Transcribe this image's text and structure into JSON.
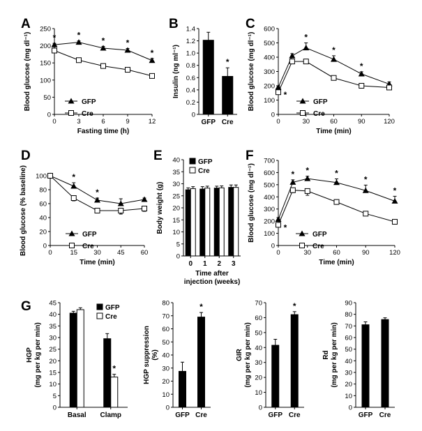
{
  "panels": {
    "A": "A",
    "B": "B",
    "C": "C",
    "D": "D",
    "E": "E",
    "F": "F",
    "G": "G"
  },
  "legend": {
    "gfp": "GFP",
    "cre": "Cre"
  },
  "chart_data": [
    {
      "id": "A",
      "type": "line",
      "xlabel": "Fasting time (h)",
      "ylabel": "Blood glucose (mg dl⁻¹)",
      "x": [
        0,
        3,
        6,
        9,
        12
      ],
      "xticks": [
        "0",
        "3",
        "6",
        "9",
        "12"
      ],
      "yticks": [
        "0",
        "50",
        "100",
        "150",
        "200",
        "250"
      ],
      "ylim": [
        0,
        250
      ],
      "series": [
        {
          "name": "GFP",
          "marker": "triangle",
          "values": [
            203,
            210,
            193,
            187,
            157
          ],
          "errors": [
            4,
            4,
            5,
            5,
            6
          ]
        },
        {
          "name": "Cre",
          "marker": "open-square",
          "values": [
            186,
            158,
            141,
            130,
            112
          ],
          "errors": [
            4,
            3,
            4,
            4,
            5
          ]
        }
      ],
      "stars": [
        0,
        3,
        6,
        9,
        12
      ],
      "star_label": "*"
    },
    {
      "id": "B",
      "type": "bar",
      "ylabel": "Insulin (ng ml⁻¹)",
      "categories": [
        "GFP",
        "Cre"
      ],
      "yticks": [
        "0",
        "0.2",
        "0.4",
        "0.6",
        "0.8",
        "1.0",
        "1.2",
        "1.4"
      ],
      "ylim": [
        0,
        1.4
      ],
      "values": [
        1.21,
        0.62
      ],
      "errors": [
        0.13,
        0.14
      ],
      "stars": [
        "Cre"
      ],
      "star_label": "*"
    },
    {
      "id": "C",
      "type": "line",
      "xlabel": "Time (min)",
      "ylabel": "Blood glucose (mg dl⁻¹)",
      "x": [
        0,
        15,
        30,
        60,
        90,
        120
      ],
      "xticks": [
        "0",
        "30",
        "60",
        "90",
        "120"
      ],
      "yticks": [
        "0",
        "100",
        "200",
        "300",
        "400",
        "500",
        "600"
      ],
      "ylim": [
        0,
        600
      ],
      "series": [
        {
          "name": "GFP",
          "marker": "triangle",
          "values": [
            190,
            410,
            465,
            385,
            283,
            212
          ],
          "errors": [
            10,
            15,
            35,
            25,
            15,
            15
          ]
        },
        {
          "name": "Cre",
          "marker": "open-square",
          "values": [
            155,
            370,
            370,
            255,
            200,
            188
          ],
          "errors": [
            10,
            15,
            15,
            15,
            8,
            8
          ]
        }
      ],
      "stars": [
        0,
        30,
        60,
        90
      ],
      "star_label": "*"
    },
    {
      "id": "D",
      "type": "line",
      "xlabel": "Time (min)",
      "ylabel": "Blood glucose (% baseline)",
      "x": [
        0,
        15,
        30,
        45,
        60
      ],
      "xticks": [
        "0",
        "15",
        "30",
        "45",
        "60"
      ],
      "yticks": [
        "0",
        "20",
        "40",
        "60",
        "80",
        "100"
      ],
      "ylim": [
        0,
        100
      ],
      "series": [
        {
          "name": "GFP",
          "marker": "triangle",
          "values": [
            100,
            85,
            65,
            60,
            66
          ],
          "errors": [
            0,
            5,
            3,
            7,
            2
          ]
        },
        {
          "name": "Cre",
          "marker": "open-square",
          "values": [
            100,
            68,
            50,
            50,
            53
          ],
          "errors": [
            0,
            4,
            3,
            5,
            4
          ]
        }
      ],
      "stars": [
        15,
        30
      ],
      "star_label": "*"
    },
    {
      "id": "E",
      "type": "bar",
      "xlabel": "Time after injection (weeks)",
      "ylabel": "Body weight (g)",
      "categories": [
        "0",
        "1",
        "2",
        "3"
      ],
      "yticks": [
        "0",
        "5",
        "10",
        "15",
        "20",
        "25",
        "30",
        "35",
        "40"
      ],
      "ylim": [
        0,
        40
      ],
      "series": [
        {
          "name": "GFP",
          "values": [
            27.5,
            27.8,
            28.2,
            28.5
          ],
          "errors": [
            0.8,
            1.0,
            0.8,
            1.0
          ]
        },
        {
          "name": "Cre",
          "values": [
            28.0,
            28.2,
            28.3,
            28.5
          ],
          "errors": [
            0.8,
            0.8,
            0.8,
            1.0
          ]
        }
      ]
    },
    {
      "id": "F",
      "type": "line",
      "xlabel": "Time (min)",
      "ylabel": "Blood glucose (mg dl⁻¹)",
      "x": [
        0,
        15,
        30,
        60,
        90,
        120
      ],
      "xticks": [
        "0",
        "30",
        "60",
        "90",
        "120"
      ],
      "yticks": [
        "0",
        "100",
        "200",
        "300",
        "400",
        "500",
        "600",
        "700"
      ],
      "ylim": [
        0,
        700
      ],
      "series": [
        {
          "name": "GFP",
          "marker": "triangle",
          "values": [
            215,
            520,
            550,
            518,
            452,
            365
          ],
          "errors": [
            15,
            20,
            20,
            30,
            45,
            40
          ]
        },
        {
          "name": "Cre",
          "marker": "open-square",
          "values": [
            170,
            455,
            448,
            358,
            262,
            195
          ],
          "errors": [
            10,
            20,
            35,
            20,
            15,
            12
          ]
        }
      ],
      "stars": [
        15,
        30,
        60,
        90,
        120
      ],
      "star_label": "*",
      "star0_label": "*"
    },
    {
      "id": "G1",
      "type": "bar",
      "ylabel": "HGP (mg per kg per min)",
      "categories": [
        "Basal",
        "Clamp"
      ],
      "yticks": [
        "0",
        "5",
        "10",
        "15",
        "20",
        "25",
        "30",
        "35",
        "40",
        "45"
      ],
      "ylim": [
        0,
        45
      ],
      "series": [
        {
          "name": "GFP",
          "values": [
            40.5,
            29.5
          ],
          "errors": [
            0.8,
            2.2
          ]
        },
        {
          "name": "Cre",
          "values": [
            42.0,
            13.0
          ],
          "errors": [
            0.8,
            1.2
          ]
        }
      ],
      "star_label": "*"
    },
    {
      "id": "G2",
      "type": "bar",
      "ylabel": "HGP suppression (%)",
      "categories": [
        "GFP",
        "Cre"
      ],
      "yticks": [
        "0",
        "10",
        "20",
        "30",
        "40",
        "50",
        "60",
        "70",
        "80"
      ],
      "ylim": [
        0,
        80
      ],
      "values": [
        27.5,
        69
      ],
      "errors": [
        7,
        3.5
      ],
      "star_label": "*"
    },
    {
      "id": "G3",
      "type": "bar",
      "ylabel": "GIR (mg per kg per min)",
      "categories": [
        "GFP",
        "Cre"
      ],
      "yticks": [
        "0",
        "10",
        "20",
        "30",
        "40",
        "50",
        "60",
        "70"
      ],
      "ylim": [
        0,
        70
      ],
      "values": [
        41.5,
        62
      ],
      "errors": [
        4,
        2
      ],
      "star_label": "*"
    },
    {
      "id": "G4",
      "type": "bar",
      "ylabel": "Rd (mg per kg per min)",
      "categories": [
        "GFP",
        "Cre"
      ],
      "yticks": [
        "0",
        "10",
        "20",
        "30",
        "40",
        "50",
        "60",
        "70",
        "80",
        "90"
      ],
      "ylim": [
        0,
        90
      ],
      "values": [
        71,
        75.5
      ],
      "errors": [
        2.5,
        1.5
      ]
    }
  ]
}
